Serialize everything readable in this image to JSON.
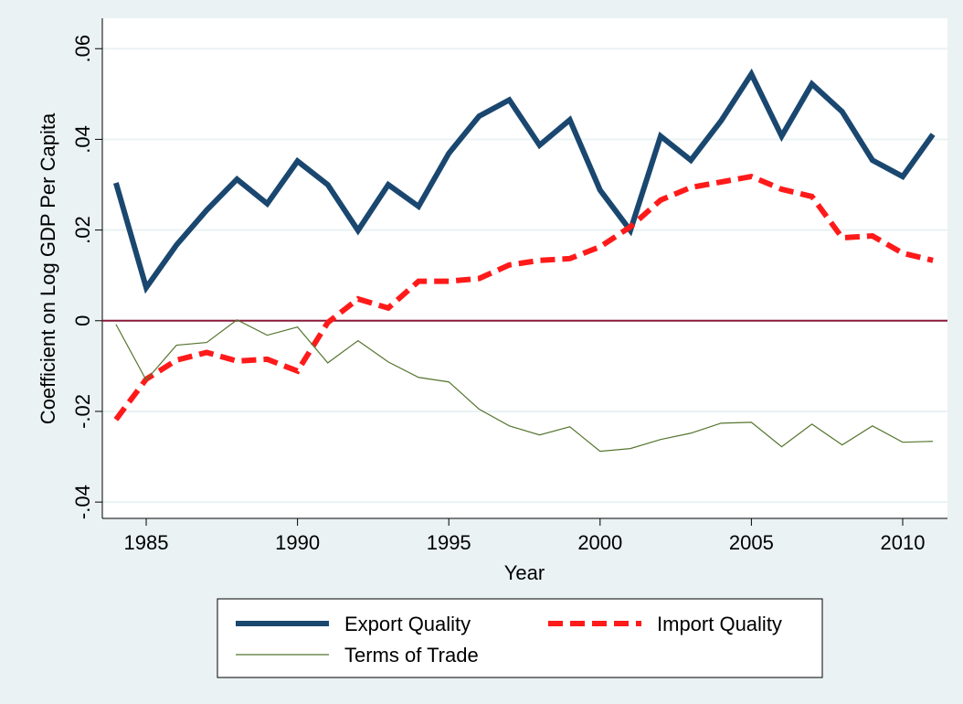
{
  "chart_data": {
    "type": "line",
    "x": [
      1984,
      1985,
      1986,
      1987,
      1988,
      1989,
      1990,
      1991,
      1992,
      1993,
      1994,
      1995,
      1996,
      1997,
      1998,
      1999,
      2000,
      2001,
      2002,
      2003,
      2004,
      2005,
      2006,
      2007,
      2008,
      2009,
      2010,
      2011
    ],
    "series": [
      {
        "name": "Export Quality",
        "color": "#1a476f",
        "width": 6,
        "dashed": false,
        "values": [
          0.0304,
          0.0073,
          0.0167,
          0.0244,
          0.0312,
          0.0258,
          0.0352,
          0.03,
          0.0199,
          0.03,
          0.0252,
          0.0369,
          0.0451,
          0.0487,
          0.0387,
          0.0443,
          0.0288,
          0.0199,
          0.0407,
          0.0354,
          0.0441,
          0.0544,
          0.0407,
          0.0522,
          0.0461,
          0.0354,
          0.0318,
          0.0411
        ]
      },
      {
        "name": "Import Quality",
        "color": "#ff1a1a",
        "width": 6,
        "dashed": true,
        "values": [
          -0.0218,
          -0.0129,
          -0.0087,
          -0.007,
          -0.0089,
          -0.0085,
          -0.0111,
          -0.0004,
          0.0048,
          0.0028,
          0.0087,
          0.0087,
          0.0093,
          0.0123,
          0.0133,
          0.0137,
          0.0163,
          0.0207,
          0.0266,
          0.0294,
          0.0306,
          0.0318,
          0.029,
          0.0274,
          0.0183,
          0.0187,
          0.0149,
          0.0133
        ]
      },
      {
        "name": "Terms of Trade",
        "color": "#55752f",
        "width": 1.2,
        "dashed": false,
        "values": [
          -0.0008,
          -0.0131,
          -0.0054,
          -0.0048,
          0.0002,
          -0.0032,
          -0.0014,
          -0.0093,
          -0.0044,
          -0.0091,
          -0.0125,
          -0.0135,
          -0.0195,
          -0.0232,
          -0.0252,
          -0.0234,
          -0.0288,
          -0.0282,
          -0.0262,
          -0.0248,
          -0.0226,
          -0.0224,
          -0.0278,
          -0.0228,
          -0.0274,
          -0.0232,
          -0.0268,
          -0.0266
        ]
      }
    ],
    "x_label": "Year",
    "y_label": "Coefficient on Log GDP Per Capita",
    "xlim": [
      1983.55,
      2011.48
    ],
    "xticks": [
      1985,
      1990,
      1995,
      2000,
      2005,
      2010
    ],
    "ylim": [
      -0.0436,
      0.0667
    ],
    "yticks": [
      {
        "value": -0.04,
        "label": "-.04"
      },
      {
        "value": -0.02,
        "label": "-.02"
      },
      0,
      {
        "value": 0.02,
        "label": ".02"
      },
      {
        "value": 0.04,
        "label": ".04"
      },
      {
        "value": 0.06,
        "label": ".06"
      }
    ],
    "grid": true,
    "yline": 0,
    "yline_color": "#8b1a3a",
    "legend": "bottom"
  }
}
